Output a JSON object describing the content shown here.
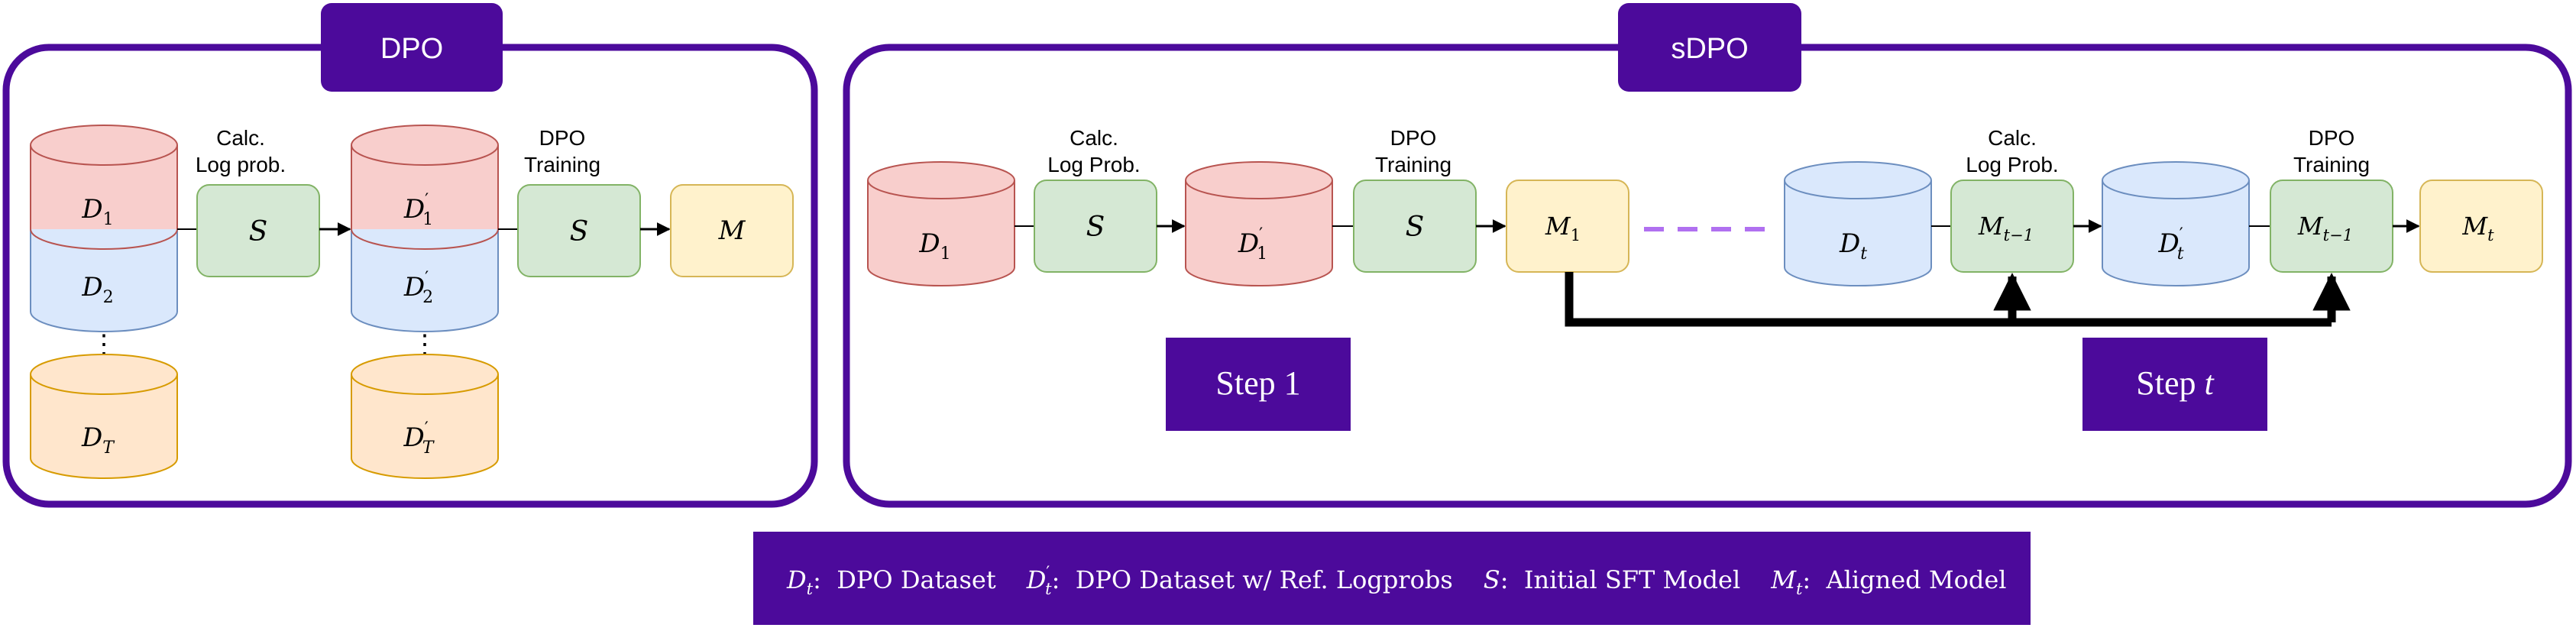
{
  "panels": {
    "dpo_title": "DPO",
    "sdpo_title": "sDPO"
  },
  "dpo": {
    "datasets": [
      "D",
      "D",
      "D"
    ],
    "dataset_subs": [
      "1",
      "2",
      "T"
    ],
    "ref_datasets": [
      "D",
      "D",
      "D"
    ],
    "ref_subs": [
      "1",
      "2",
      "T"
    ],
    "prime": "′",
    "calc_label_1": "Calc.",
    "calc_label_2": "Log prob.",
    "train_label_1": "DPO",
    "train_label_2": "Training",
    "model_s": "S",
    "model_m": "M",
    "vdots": "⋮"
  },
  "sdpo": {
    "d1": "D",
    "d1_sub": "1",
    "d1p": "D",
    "d1p_sub": "1",
    "m1": "M",
    "m1_sub": "1",
    "dt": "D",
    "dt_sub": "t",
    "dtp": "D",
    "dtp_sub": "t",
    "mt1": "M",
    "mt1_sub": "t−1",
    "mt": "M",
    "mt_sub": "t",
    "model_s": "S",
    "calc_label_1": "Calc.",
    "calc_label_2": "Log Prob.",
    "train_label_1": "DPO",
    "train_label_2": "Training",
    "step1": "Step 1",
    "stept_prefix": "Step ",
    "stept_var": "t"
  },
  "legend": {
    "d_var": "D",
    "d_sub": "t",
    "d_desc": ":  DPO Dataset",
    "dp_var": "D",
    "dp_sub": "t",
    "dp_desc": ":  DPO Dataset w/ Ref. Logprobs",
    "s_var": "S",
    "s_desc": ":  Initial SFT Model",
    "m_var": "M",
    "m_sub": "t",
    "m_desc": ":  Aligned Model"
  },
  "colors": {
    "purple": "#4C0A9B",
    "red_fill": "#F8CECC",
    "red_stroke": "#B85450",
    "blue_fill": "#DAE8FC",
    "blue_stroke": "#6C8EBF",
    "orange_fill": "#FFE6CC",
    "orange_stroke": "#D79B00",
    "green_fill": "#D5E8D4",
    "green_stroke": "#82B366",
    "yellow_fill": "#FFF2CC",
    "yellow_stroke": "#D6B656",
    "dash": "#B070F0"
  }
}
